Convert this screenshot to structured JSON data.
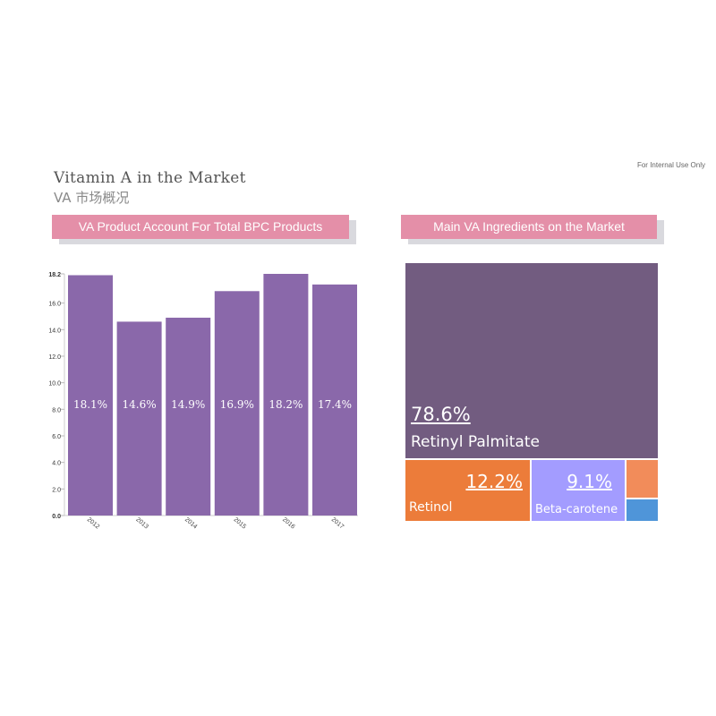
{
  "header": {
    "title_en": "Vitamin A in the Market",
    "title_cn": "VA 市场概况",
    "note": "For Internal Use Only"
  },
  "left_panel": {
    "banner": "VA Product Account For Total BPC  Products"
  },
  "right_panel": {
    "banner": "Main VA Ingredients on the  Market"
  },
  "colors": {
    "bar": "#8a68aa",
    "retinyl_palmitate": "#725c80",
    "retinol": "#ec7c3a",
    "beta_carotene": "#a39cff",
    "small_orange": "#f28c5a",
    "small_blue": "#4f95d9"
  },
  "chart_data": [
    {
      "type": "bar",
      "categories": [
        "2012",
        "2013",
        "2014",
        "2015",
        "2016",
        "2017"
      ],
      "values": [
        18.1,
        14.6,
        14.9,
        16.9,
        18.2,
        17.4
      ],
      "data_labels": [
        "18.1%",
        "14.6%",
        "14.9%",
        "16.9%",
        "18.2%",
        "17.4%"
      ],
      "title": "VA Product Account For Total BPC  Products",
      "ylim": [
        0,
        18.2
      ],
      "yticks": [
        0.0,
        2.0,
        4.0,
        6.0,
        8.0,
        10.0,
        12.0,
        14.0,
        16.0,
        18.2
      ],
      "ytick_labels": [
        "0.0",
        "2.0",
        "4.0",
        "6.0",
        "8.0",
        "10.0",
        "12.0",
        "14.0",
        "16.0",
        "18.2"
      ],
      "grid": false
    },
    {
      "type": "treemap",
      "title": "Main VA Ingredients on the  Market",
      "items": [
        {
          "name": "Retinyl Palmitate",
          "label": "78.6%",
          "value": 78.6
        },
        {
          "name": "Retinol",
          "label": "12.2%",
          "value": 12.2
        },
        {
          "name": "Beta-carotene",
          "label": "9.1%",
          "value": 9.1
        },
        {
          "name": "",
          "value": 0.07
        },
        {
          "name": "",
          "value": 0.03
        }
      ]
    }
  ]
}
